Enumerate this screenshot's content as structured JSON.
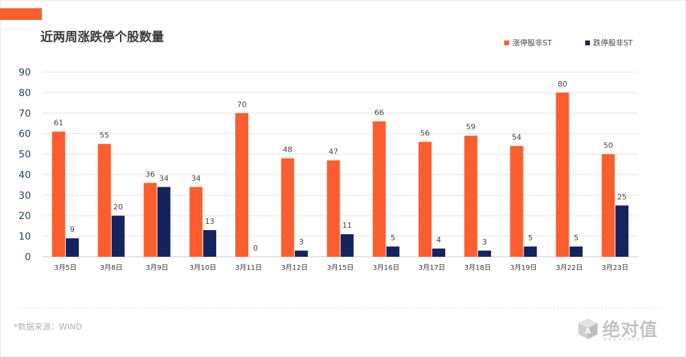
{
  "title": "近两周涨跌停个股数量",
  "source": "*数据来源：WIND",
  "logo": {
    "text": "绝对值",
    "sub": "ABSOVALUE"
  },
  "colors": {
    "accent": "#fb5e2e",
    "up": "#fb5e2e",
    "down": "#14245e",
    "grid": "#e1e1e1",
    "axis": "#1f3c73"
  },
  "chart_data": {
    "type": "bar",
    "categories": [
      "3月5日",
      "3月8日",
      "3月9日",
      "3月10日",
      "3月11日",
      "3月12日",
      "3月15日",
      "3月16日",
      "3月17日",
      "3月18日",
      "3月19日",
      "3月22日",
      "3月23日"
    ],
    "series": [
      {
        "name": "涨停股非ST",
        "values": [
          61,
          55,
          36,
          34,
          70,
          48,
          47,
          66,
          56,
          59,
          54,
          80,
          50
        ]
      },
      {
        "name": "跌停股非ST",
        "values": [
          9,
          20,
          34,
          13,
          0,
          3,
          11,
          5,
          4,
          3,
          5,
          5,
          25
        ]
      }
    ],
    "ylim": [
      0,
      90
    ],
    "yticks": [
      0,
      10,
      20,
      30,
      40,
      50,
      60,
      70,
      80,
      90
    ],
    "grid": true,
    "legend_position": "top-right"
  }
}
